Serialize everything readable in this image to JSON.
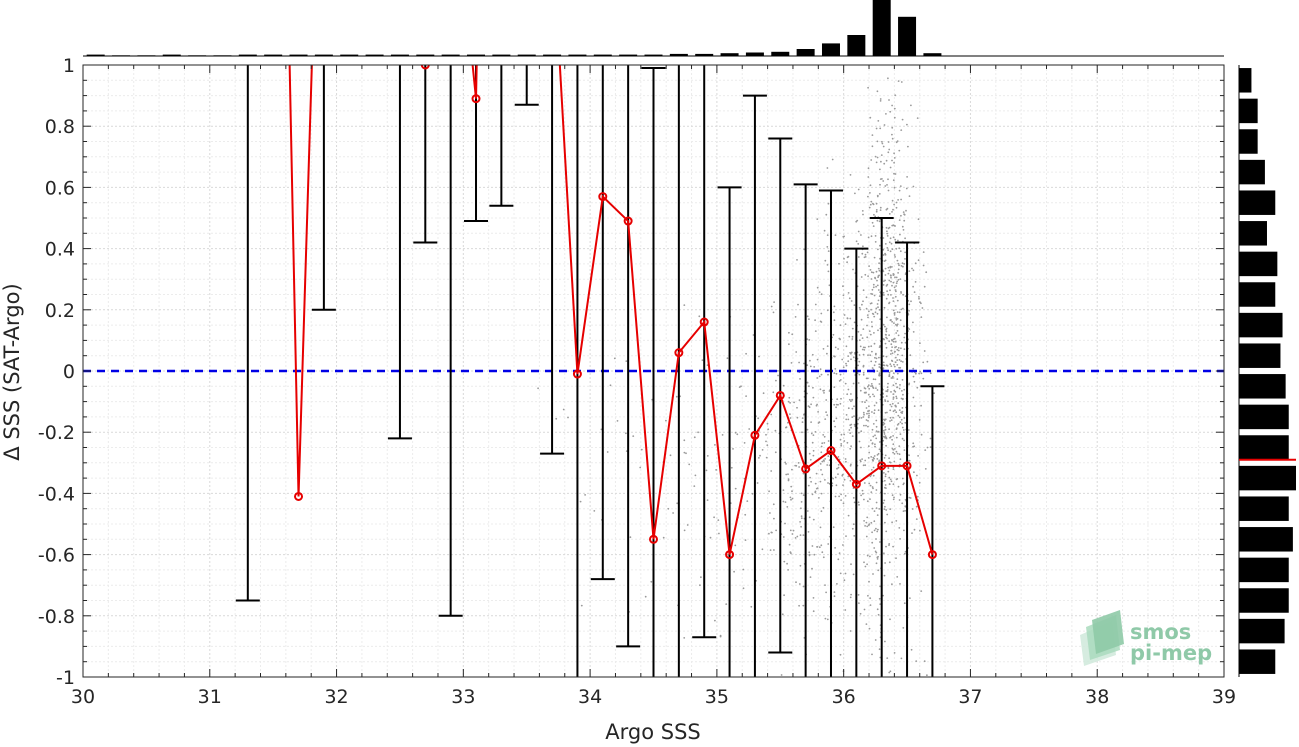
{
  "chart_data": {
    "type": "scatter",
    "xlabel": "Argo SSS",
    "ylabel": "Δ SSS (SAT-Argo)",
    "xlim": [
      30,
      39
    ],
    "ylim": [
      -1,
      1
    ],
    "x_ticks": [
      "30",
      "31",
      "32",
      "33",
      "34",
      "35",
      "36",
      "37",
      "38",
      "39"
    ],
    "y_ticks": [
      "-1",
      "-0.8",
      "-0.6",
      "-0.4",
      "-0.2",
      "0",
      "0.2",
      "0.4",
      "0.6",
      "0.8",
      "1"
    ],
    "grid": true,
    "zero_line": {
      "y": 0,
      "style": "dashed",
      "color": "#0000e6"
    },
    "series": [
      {
        "type": "line",
        "color": "#e60000",
        "x": [
          31.7,
          33.1,
          33.9,
          34.1,
          34.3,
          34.5,
          34.7,
          34.9,
          35.1,
          35.3,
          35.5,
          35.7,
          35.9,
          36.1,
          36.3,
          36.5,
          36.7
        ],
        "y": [
          -0.41,
          0.89,
          -0.01,
          0.57,
          0.49,
          -0.55,
          0.06,
          0.16,
          -0.6,
          -0.21,
          -0.08,
          -0.32,
          -0.26,
          -0.37,
          -0.31,
          -0.31,
          -0.6
        ]
      },
      {
        "type": "errorbar",
        "color": "#000000",
        "bars": [
          {
            "x": 31.3,
            "low": -0.75,
            "high": 1.5
          },
          {
            "x": 31.9,
            "low": 0.2,
            "high": 1.5
          },
          {
            "x": 32.5,
            "low": -0.22,
            "high": 1.5
          },
          {
            "x": 32.7,
            "low": 0.42,
            "high": 1.5
          },
          {
            "x": 32.9,
            "low": -0.8,
            "high": 1.5
          },
          {
            "x": 33.1,
            "low": 0.49,
            "high": 1.5
          },
          {
            "x": 33.3,
            "low": 0.54,
            "high": 1.5
          },
          {
            "x": 33.5,
            "low": 0.87,
            "high": 1.5
          },
          {
            "x": 33.7,
            "low": -0.27,
            "high": 1.5
          },
          {
            "x": 33.9,
            "low": -1.5,
            "high": 1.5
          },
          {
            "x": 34.1,
            "low": -0.68,
            "high": 1.5
          },
          {
            "x": 34.3,
            "low": -0.9,
            "high": 1.5
          },
          {
            "x": 34.5,
            "low": -1.5,
            "high": 0.99
          },
          {
            "x": 34.7,
            "low": -1.5,
            "high": 1.5
          },
          {
            "x": 34.9,
            "low": -0.87,
            "high": 1.5
          },
          {
            "x": 35.1,
            "low": -1.5,
            "high": 0.6
          },
          {
            "x": 35.3,
            "low": -1.5,
            "high": 0.9
          },
          {
            "x": 35.5,
            "low": -0.92,
            "high": 0.76
          },
          {
            "x": 35.7,
            "low": -1.5,
            "high": 0.61
          },
          {
            "x": 35.9,
            "low": -1.5,
            "high": 0.59
          },
          {
            "x": 36.1,
            "low": -1.5,
            "high": 0.4
          },
          {
            "x": 36.3,
            "low": -1.5,
            "high": 0.5
          },
          {
            "x": 36.5,
            "low": -1.5,
            "high": 0.42
          },
          {
            "x": 36.7,
            "low": -1.5,
            "high": -0.05
          }
        ]
      }
    ],
    "top_histogram": {
      "bin_centers": [
        30.1,
        30.3,
        30.5,
        30.7,
        30.9,
        31.1,
        31.3,
        31.5,
        31.7,
        31.9,
        32.1,
        32.3,
        32.5,
        32.7,
        32.9,
        33.1,
        33.3,
        33.5,
        33.7,
        33.9,
        34.1,
        34.3,
        34.5,
        34.7,
        34.9,
        35.1,
        35.3,
        35.5,
        35.7,
        35.9,
        36.1,
        36.3,
        36.5,
        36.7
      ],
      "values": [
        1,
        0.5,
        0.5,
        1,
        0.5,
        0.5,
        1,
        1,
        1,
        1,
        1,
        1,
        1,
        1,
        1,
        1,
        1,
        1,
        1,
        1,
        1,
        1,
        1,
        1.5,
        1.5,
        2,
        2.5,
        3,
        5,
        9,
        15,
        40,
        28,
        2
      ]
    },
    "right_histogram": {
      "bin_centers": [
        0.95,
        0.85,
        0.75,
        0.65,
        0.55,
        0.45,
        0.35,
        0.25,
        0.15,
        0.05,
        -0.05,
        -0.15,
        -0.25,
        -0.35,
        -0.45,
        -0.55,
        -0.65,
        -0.75,
        -0.85,
        -0.95
      ],
      "values": [
        12,
        18,
        18,
        25,
        35,
        27,
        37,
        35,
        42,
        40,
        45,
        48,
        48,
        55,
        48,
        52,
        48,
        48,
        44,
        35
      ],
      "marker_y": -0.29,
      "marker_color": "#e60000"
    }
  },
  "logo": {
    "line1": "smos",
    "line2": "pi-mep"
  }
}
